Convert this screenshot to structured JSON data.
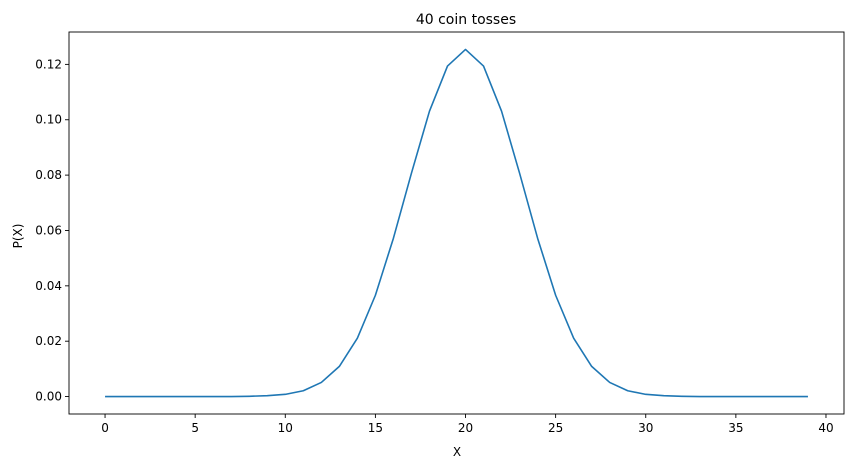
{
  "chart_data": {
    "type": "line",
    "title": "40 coin tosses",
    "xlabel": "X",
    "ylabel": "P(X)",
    "xlim": [
      -2,
      41
    ],
    "ylim": [
      -0.0063,
      0.1317
    ],
    "xticks": [
      0,
      5,
      10,
      15,
      20,
      25,
      30,
      35,
      40
    ],
    "yticks": [
      0.0,
      0.02,
      0.04,
      0.06,
      0.08,
      0.1,
      0.12
    ],
    "ytick_labels": [
      "0.00",
      "0.02",
      "0.04",
      "0.06",
      "0.08",
      "0.10",
      "0.12"
    ],
    "grid": false,
    "series": [
      {
        "color": "#1f77b4",
        "x": [
          0,
          1,
          2,
          3,
          4,
          5,
          6,
          7,
          8,
          9,
          10,
          11,
          12,
          13,
          14,
          15,
          16,
          17,
          18,
          19,
          20,
          21,
          22,
          23,
          24,
          25,
          26,
          27,
          28,
          29,
          30,
          31,
          32,
          33,
          34,
          35,
          36,
          37,
          38,
          39
        ],
        "y": [
          0.0,
          0.0,
          0.0,
          0.0,
          0.0,
          0.0,
          0.0,
          0.0,
          0.0001,
          0.0003,
          0.0008,
          0.0021,
          0.0051,
          0.0109,
          0.0211,
          0.0366,
          0.0572,
          0.0807,
          0.1031,
          0.1194,
          0.1254,
          0.1194,
          0.1031,
          0.0807,
          0.0572,
          0.0366,
          0.0211,
          0.0109,
          0.0051,
          0.0021,
          0.0008,
          0.0003,
          0.0001,
          0.0,
          0.0,
          0.0,
          0.0,
          0.0,
          0.0,
          0.0
        ]
      }
    ]
  }
}
